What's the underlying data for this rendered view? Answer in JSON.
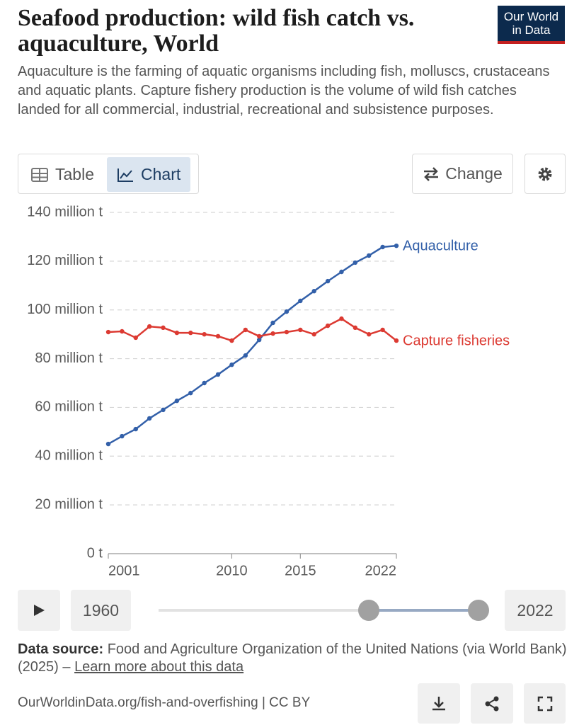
{
  "header": {
    "title": "Seafood production: wild fish catch vs. aquaculture, World",
    "subtitle": "Aquaculture is the farming of aquatic organisms including fish, molluscs, crustaceans and aquatic plants. Capture fishery production is the volume of wild fish catches landed for all commercial, industrial, recreational and subsistence purposes.",
    "logo": [
      "Our World",
      "in Data"
    ]
  },
  "tabs": [
    "Table",
    "Chart"
  ],
  "change": "Change",
  "chart_data": {
    "type": "line",
    "x": [
      2001,
      2002,
      2003,
      2004,
      2005,
      2006,
      2007,
      2008,
      2009,
      2010,
      2011,
      2012,
      2013,
      2014,
      2015,
      2016,
      2017,
      2018,
      2019,
      2020,
      2021,
      2022
    ],
    "series": [
      {
        "name": "Aquaculture",
        "color": "#3360a9",
        "values": [
          45.0,
          48.2,
          51.1,
          55.5,
          59.0,
          62.7,
          65.9,
          70.0,
          73.5,
          77.5,
          81.3,
          87.7,
          94.7,
          99.3,
          103.7,
          107.7,
          111.8,
          115.6,
          119.4,
          122.3,
          125.8,
          126.3
        ]
      },
      {
        "name": "Capture fisheries",
        "color": "#dc3a32",
        "values": [
          90.9,
          91.2,
          88.6,
          93.2,
          92.7,
          90.6,
          90.6,
          90.0,
          89.2,
          87.4,
          91.8,
          89.2,
          90.3,
          90.9,
          91.8,
          90.0,
          93.5,
          96.4,
          92.7,
          90.0,
          91.8,
          87.4
        ]
      }
    ],
    "xlim": [
      2001,
      2022
    ],
    "xticks": [
      2001,
      2010,
      2015,
      2022
    ],
    "ylim": [
      0,
      140
    ],
    "yticks": [
      {
        "value": 0,
        "label": "0 t"
      },
      {
        "value": 20,
        "label": "20 million t"
      },
      {
        "value": 40,
        "label": "40 million t"
      },
      {
        "value": 60,
        "label": "60 million t"
      },
      {
        "value": 80,
        "label": "80 million t"
      },
      {
        "value": 100,
        "label": "100 million t"
      },
      {
        "value": 120,
        "label": "120 million t"
      },
      {
        "value": 140,
        "label": "140 million t"
      }
    ],
    "grid": true
  },
  "timeline": {
    "start": "1960",
    "end": "2022"
  },
  "source": {
    "label": "Data source:",
    "text": "Food and Agriculture Organization of the United Nations (via World Bank) (2025) –",
    "link": "Learn more about this data"
  },
  "footer": {
    "url": "OurWorldinData.org/fish-and-overfishing | CC BY"
  }
}
